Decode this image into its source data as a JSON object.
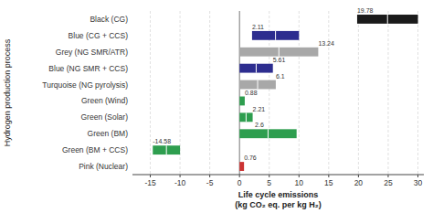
{
  "chart_data": {
    "type": "bar",
    "orientation": "horizontal",
    "categories": [
      "Black (CG)",
      "Blue (CG + CCS)",
      "Grey (NG SMR/ATR)",
      "Blue (NG SMR + CCS)",
      "Turquoise (NG pyrolysis)",
      "Green (Wind)",
      "Green (Solar)",
      "Green (BM)",
      "Green (BM + CCS)",
      "Pink (Nuclear)"
    ],
    "starts": [
      19.78,
      2.11,
      0.0,
      0.0,
      0.0,
      0.0,
      0.0,
      0.0,
      -14.58,
      0.0
    ],
    "values": [
      30.0,
      10.0,
      13.24,
      5.61,
      6.1,
      0.88,
      2.21,
      9.6,
      -10.0,
      0.76
    ],
    "colors": [
      "#1a1a1a",
      "#2d2d8f",
      "#a8a8a8",
      "#2d2d8f",
      "#a8a8a8",
      "#2e9e4f",
      "#2e9e4f",
      "#2e9e4f",
      "#2e9e4f",
      "#cc3333"
    ],
    "dividers": [
      24.89,
      6.055,
      6.62,
      2.805,
      3.05,
      null,
      1.105,
      4.8,
      -12.29,
      null
    ],
    "label_values": [
      19.78,
      2.11,
      13.24,
      5.61,
      6.1,
      0.88,
      2.21,
      2.6,
      -14.58,
      0.76
    ],
    "xlabel": "Life cycle emissions\n(kg CO₂ eq. per kg H₂)",
    "ylabel": "Hydrogen production process",
    "xlim": [
      -18,
      31
    ],
    "xticks": [
      -15,
      -10,
      -5,
      0,
      5,
      10,
      15,
      20,
      25,
      30
    ],
    "grid": true
  }
}
